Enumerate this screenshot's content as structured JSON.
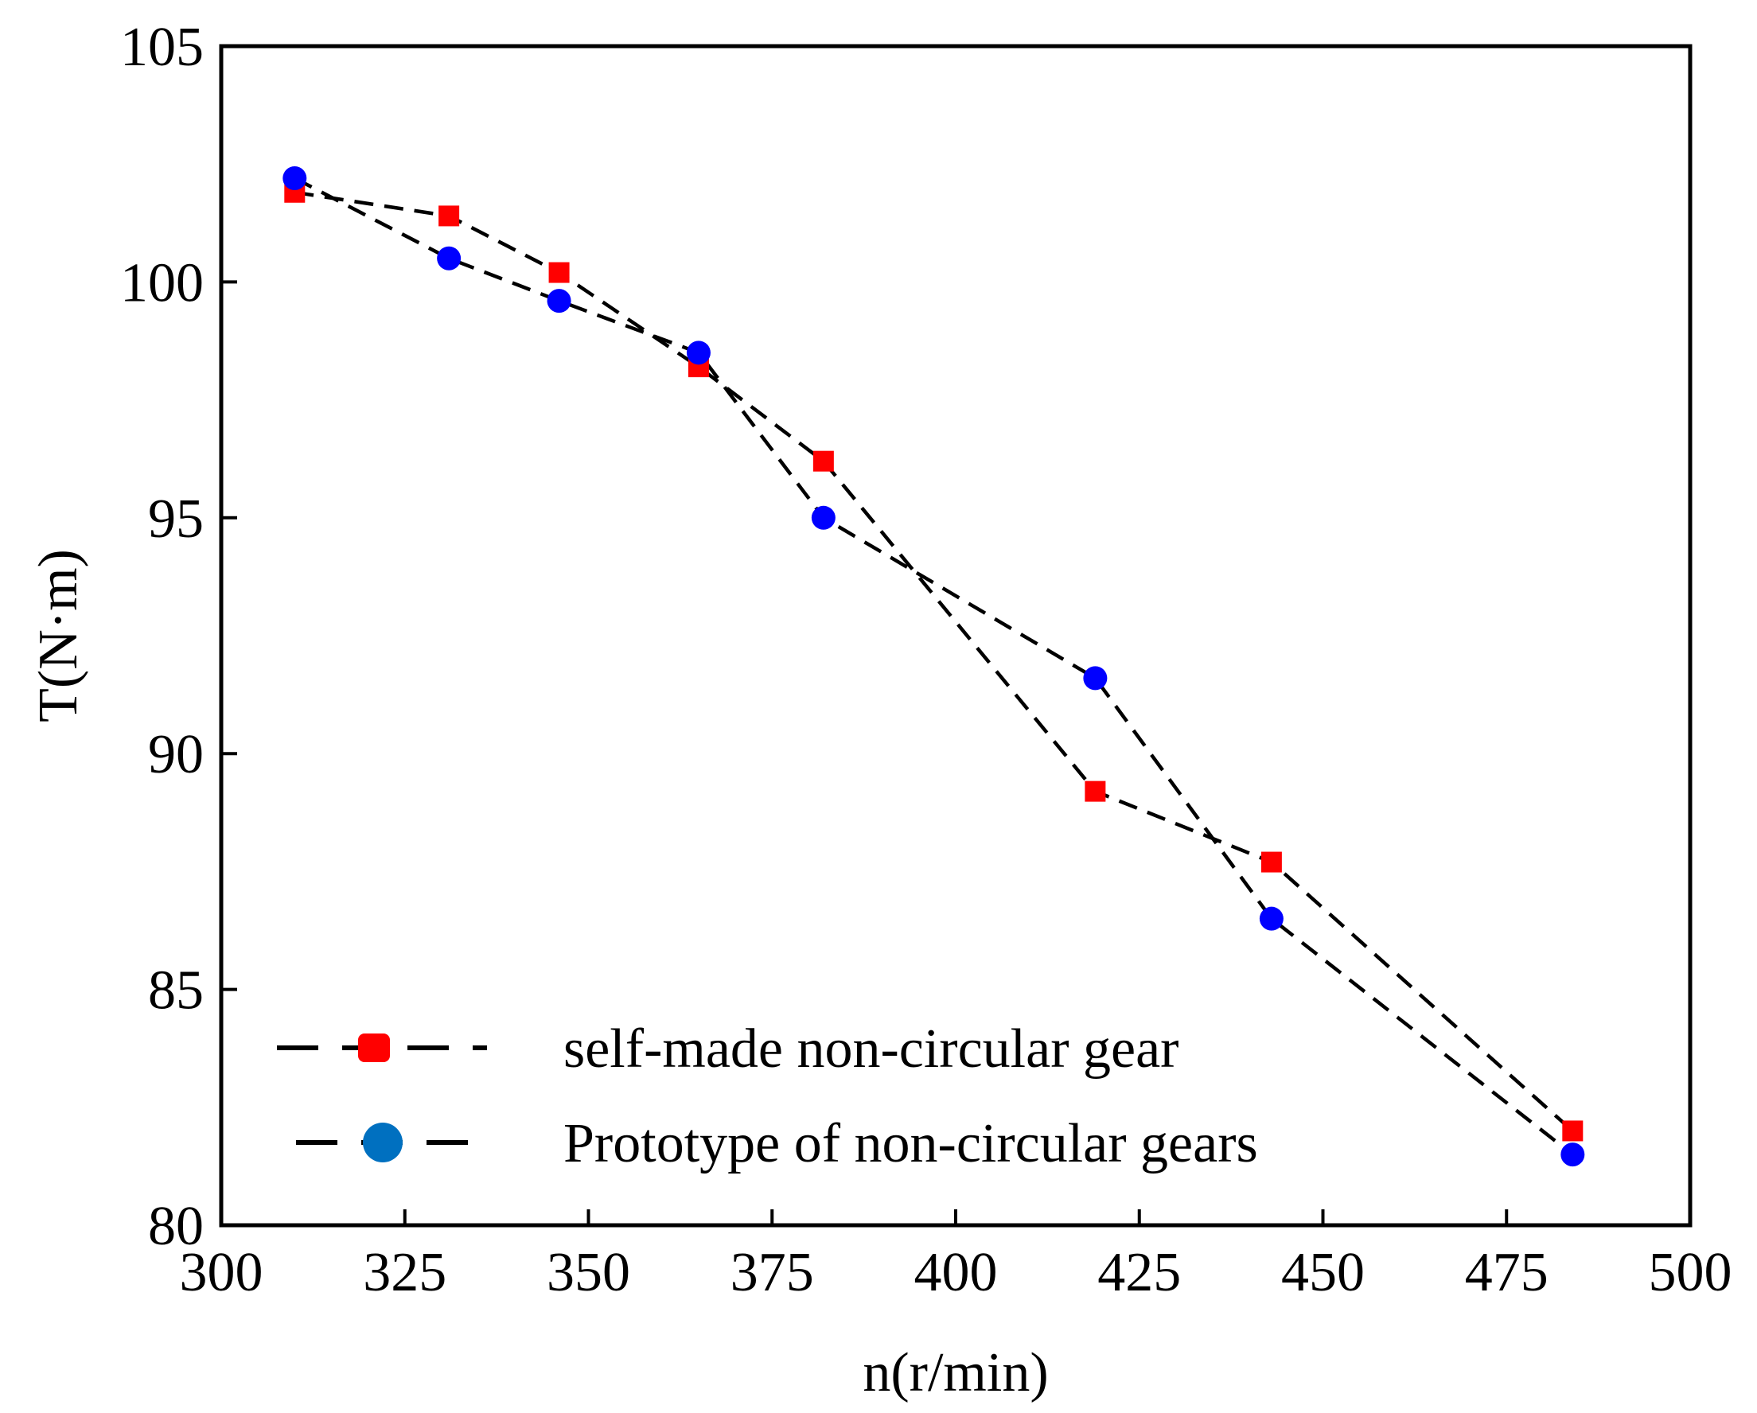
{
  "chart_data": {
    "type": "line",
    "title": "",
    "xlabel": "n(r/min)",
    "ylabel": "T(N·m)",
    "xlim": [
      300,
      500
    ],
    "ylim": [
      80,
      105
    ],
    "xticks": [
      300,
      325,
      350,
      375,
      400,
      425,
      450,
      475,
      500
    ],
    "yticks": [
      80,
      85,
      90,
      95,
      100,
      105
    ],
    "xtick_labels": [
      "300",
      "325",
      "350",
      "375",
      "400",
      "425",
      "450",
      "475",
      "500"
    ],
    "ytick_labels": [
      "80",
      "85",
      "90",
      "95",
      "100",
      "105"
    ],
    "grid": false,
    "legend_position": "bottom-left",
    "series": [
      {
        "name": "self-made non-circular gear",
        "marker": "square",
        "line_style": "dashed",
        "color": "#ff0000",
        "line_color": "#000000",
        "x": [
          310,
          331,
          346,
          365,
          382,
          419,
          443,
          484
        ],
        "y": [
          101.9,
          101.4,
          100.2,
          98.2,
          96.2,
          89.2,
          87.7,
          82.0
        ]
      },
      {
        "name": "Prototype of non-circular gears",
        "marker": "circle",
        "line_style": "dashed",
        "color": "#0000ff",
        "legend_marker_color": "#0070c0",
        "line_color": "#000000",
        "x": [
          310,
          331,
          346,
          365,
          382,
          419,
          443,
          484
        ],
        "y": [
          102.2,
          100.5,
          99.6,
          98.5,
          95.0,
          91.6,
          86.5,
          81.5
        ]
      }
    ]
  }
}
